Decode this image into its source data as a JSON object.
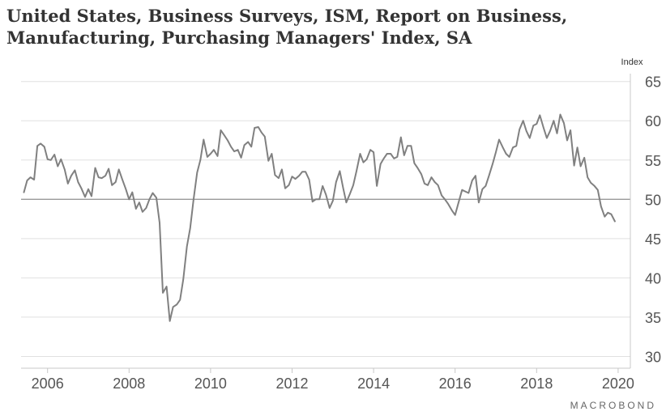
{
  "chart_data": {
    "type": "line",
    "title_lines": [
      "United States, Business Surveys, ISM, Report on Business,",
      "Manufacturing, Purchasing Managers' Index, SA"
    ],
    "ylabel": "Index",
    "source": "MACROBOND",
    "ylim": [
      28.5,
      66
    ],
    "xlim": [
      2005.35,
      2020.3
    ],
    "yticks": [
      30,
      35,
      40,
      45,
      50,
      55,
      60,
      65
    ],
    "xticks": [
      2006,
      2008,
      2010,
      2012,
      2014,
      2016,
      2018,
      2020
    ],
    "grid": true,
    "reference_line": 50,
    "colors": {
      "line": "#808080",
      "grid": "#e0e0e0",
      "axis": "#c8c8c8",
      "ref": "#999999"
    },
    "series": [
      {
        "points": [
          [
            2005.42,
            50.9
          ],
          [
            2005.5,
            52.4
          ],
          [
            2005.58,
            52.8
          ],
          [
            2005.67,
            52.5
          ],
          [
            2005.75,
            56.8
          ],
          [
            2005.83,
            57.1
          ],
          [
            2005.92,
            56.7
          ],
          [
            2006.0,
            55.1
          ],
          [
            2006.08,
            55.0
          ],
          [
            2006.17,
            55.7
          ],
          [
            2006.25,
            54.2
          ],
          [
            2006.33,
            55.1
          ],
          [
            2006.42,
            53.8
          ],
          [
            2006.5,
            52.0
          ],
          [
            2006.58,
            53.0
          ],
          [
            2006.67,
            53.7
          ],
          [
            2006.75,
            52.2
          ],
          [
            2006.83,
            51.4
          ],
          [
            2006.92,
            50.3
          ],
          [
            2007.0,
            51.3
          ],
          [
            2007.08,
            50.4
          ],
          [
            2007.17,
            54.0
          ],
          [
            2007.25,
            52.8
          ],
          [
            2007.33,
            52.7
          ],
          [
            2007.42,
            53.0
          ],
          [
            2007.5,
            53.9
          ],
          [
            2007.58,
            51.8
          ],
          [
            2007.67,
            52.2
          ],
          [
            2007.75,
            53.8
          ],
          [
            2007.83,
            52.6
          ],
          [
            2007.92,
            51.3
          ],
          [
            2008.0,
            50.0
          ],
          [
            2008.08,
            50.9
          ],
          [
            2008.17,
            48.8
          ],
          [
            2008.25,
            49.6
          ],
          [
            2008.33,
            48.4
          ],
          [
            2008.42,
            48.9
          ],
          [
            2008.5,
            50.0
          ],
          [
            2008.58,
            50.8
          ],
          [
            2008.67,
            50.2
          ],
          [
            2008.75,
            47.0
          ],
          [
            2008.83,
            38.1
          ],
          [
            2008.92,
            38.9
          ],
          [
            2009.0,
            34.5
          ],
          [
            2009.08,
            36.3
          ],
          [
            2009.17,
            36.6
          ],
          [
            2009.25,
            37.2
          ],
          [
            2009.33,
            39.8
          ],
          [
            2009.42,
            44.0
          ],
          [
            2009.5,
            46.3
          ],
          [
            2009.58,
            49.9
          ],
          [
            2009.67,
            53.4
          ],
          [
            2009.75,
            55.0
          ],
          [
            2009.83,
            57.6
          ],
          [
            2009.92,
            55.4
          ],
          [
            2010.0,
            55.8
          ],
          [
            2010.08,
            56.3
          ],
          [
            2010.17,
            55.5
          ],
          [
            2010.25,
            58.8
          ],
          [
            2010.33,
            58.2
          ],
          [
            2010.42,
            57.5
          ],
          [
            2010.5,
            56.7
          ],
          [
            2010.58,
            56.1
          ],
          [
            2010.67,
            56.3
          ],
          [
            2010.75,
            55.3
          ],
          [
            2010.83,
            56.9
          ],
          [
            2010.92,
            57.3
          ],
          [
            2011.0,
            56.7
          ],
          [
            2011.08,
            59.1
          ],
          [
            2011.17,
            59.2
          ],
          [
            2011.25,
            58.5
          ],
          [
            2011.33,
            58.0
          ],
          [
            2011.42,
            54.9
          ],
          [
            2011.5,
            55.8
          ],
          [
            2011.58,
            53.1
          ],
          [
            2011.67,
            52.7
          ],
          [
            2011.75,
            53.8
          ],
          [
            2011.83,
            51.4
          ],
          [
            2011.92,
            51.8
          ],
          [
            2012.0,
            52.9
          ],
          [
            2012.08,
            52.6
          ],
          [
            2012.17,
            53.0
          ],
          [
            2012.25,
            53.5
          ],
          [
            2012.33,
            53.5
          ],
          [
            2012.42,
            52.5
          ],
          [
            2012.5,
            49.7
          ],
          [
            2012.58,
            50.0
          ],
          [
            2012.67,
            50.0
          ],
          [
            2012.75,
            51.7
          ],
          [
            2012.83,
            50.6
          ],
          [
            2012.92,
            48.9
          ],
          [
            2013.0,
            49.8
          ],
          [
            2013.08,
            52.2
          ],
          [
            2013.17,
            53.6
          ],
          [
            2013.25,
            51.5
          ],
          [
            2013.33,
            49.6
          ],
          [
            2013.42,
            50.7
          ],
          [
            2013.5,
            51.8
          ],
          [
            2013.58,
            53.6
          ],
          [
            2013.67,
            55.8
          ],
          [
            2013.75,
            54.7
          ],
          [
            2013.83,
            55.1
          ],
          [
            2013.92,
            56.3
          ],
          [
            2014.0,
            56.0
          ],
          [
            2014.08,
            51.7
          ],
          [
            2014.17,
            54.5
          ],
          [
            2014.25,
            55.2
          ],
          [
            2014.33,
            55.8
          ],
          [
            2014.42,
            55.8
          ],
          [
            2014.5,
            55.2
          ],
          [
            2014.58,
            55.4
          ],
          [
            2014.67,
            57.9
          ],
          [
            2014.75,
            55.6
          ],
          [
            2014.83,
            56.8
          ],
          [
            2014.92,
            56.8
          ],
          [
            2015.0,
            54.6
          ],
          [
            2015.08,
            54.0
          ],
          [
            2015.17,
            53.2
          ],
          [
            2015.25,
            52.0
          ],
          [
            2015.33,
            51.8
          ],
          [
            2015.42,
            52.8
          ],
          [
            2015.5,
            52.2
          ],
          [
            2015.58,
            51.8
          ],
          [
            2015.67,
            50.5
          ],
          [
            2015.75,
            50.0
          ],
          [
            2015.83,
            49.4
          ],
          [
            2015.92,
            48.6
          ],
          [
            2016.0,
            48.0
          ],
          [
            2016.08,
            49.5
          ],
          [
            2016.17,
            51.2
          ],
          [
            2016.25,
            51.0
          ],
          [
            2016.33,
            50.8
          ],
          [
            2016.42,
            52.4
          ],
          [
            2016.5,
            53.0
          ],
          [
            2016.58,
            49.6
          ],
          [
            2016.67,
            51.3
          ],
          [
            2016.75,
            51.7
          ],
          [
            2016.83,
            53.0
          ],
          [
            2016.92,
            54.5
          ],
          [
            2017.0,
            56.0
          ],
          [
            2017.08,
            57.6
          ],
          [
            2017.17,
            56.6
          ],
          [
            2017.25,
            55.8
          ],
          [
            2017.33,
            55.4
          ],
          [
            2017.42,
            56.6
          ],
          [
            2017.5,
            56.8
          ],
          [
            2017.58,
            58.9
          ],
          [
            2017.67,
            60.0
          ],
          [
            2017.75,
            58.7
          ],
          [
            2017.83,
            57.8
          ],
          [
            2017.92,
            59.4
          ],
          [
            2018.0,
            59.6
          ],
          [
            2018.08,
            60.7
          ],
          [
            2018.17,
            59.1
          ],
          [
            2018.25,
            57.8
          ],
          [
            2018.33,
            58.7
          ],
          [
            2018.42,
            60.0
          ],
          [
            2018.5,
            58.4
          ],
          [
            2018.58,
            60.8
          ],
          [
            2018.67,
            59.7
          ],
          [
            2018.75,
            57.5
          ],
          [
            2018.83,
            58.8
          ],
          [
            2018.92,
            54.3
          ],
          [
            2019.0,
            56.6
          ],
          [
            2019.08,
            54.2
          ],
          [
            2019.17,
            55.3
          ],
          [
            2019.25,
            52.8
          ],
          [
            2019.33,
            52.1
          ],
          [
            2019.42,
            51.7
          ],
          [
            2019.5,
            51.2
          ],
          [
            2019.58,
            49.1
          ],
          [
            2019.67,
            47.8
          ],
          [
            2019.75,
            48.3
          ],
          [
            2019.83,
            48.1
          ],
          [
            2019.92,
            47.2
          ]
        ]
      }
    ]
  }
}
